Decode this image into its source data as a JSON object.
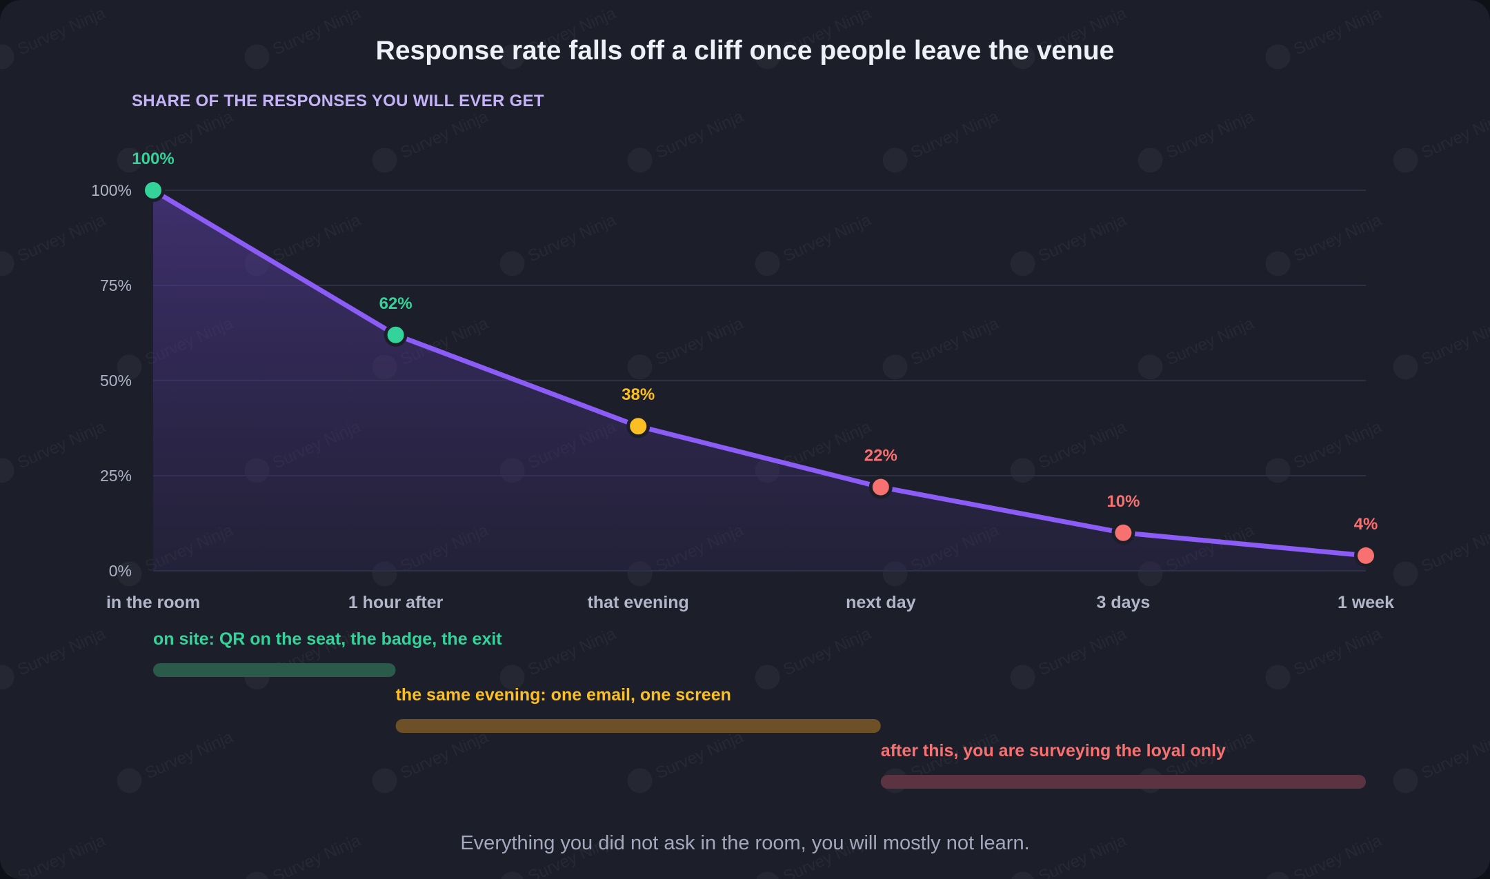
{
  "title": "Response rate falls off a cliff once people leave the venue",
  "subtitle": "SHARE OF THE RESPONSES YOU WILL EVER GET",
  "caption": "Everything you did not ask in the room, you will mostly not learn.",
  "watermark": "Survey Ninja",
  "colors": {
    "background": "#1c1e2a",
    "line": "#8b5cf6",
    "green": "#34d399",
    "amber": "#fbbf24",
    "red": "#f87171"
  },
  "chart_data": {
    "type": "area",
    "categories": [
      "in the room",
      "1 hour after",
      "that evening",
      "next day",
      "3 days",
      "1 week"
    ],
    "values": [
      100,
      62,
      38,
      22,
      10,
      4
    ],
    "value_labels": [
      "100%",
      "62%",
      "38%",
      "22%",
      "10%",
      "4%"
    ],
    "point_colors": [
      "#34d399",
      "#34d399",
      "#fbbf24",
      "#f87171",
      "#f87171",
      "#f87171"
    ],
    "ylim": [
      0,
      100
    ],
    "yticks": [
      {
        "value": 0,
        "label": "0%"
      },
      {
        "value": 25,
        "label": "25%"
      },
      {
        "value": 50,
        "label": "50%"
      },
      {
        "value": 75,
        "label": "75%"
      },
      {
        "value": 100,
        "label": "100%"
      }
    ],
    "grid": true,
    "segments": [
      {
        "label": "on site: QR on the seat, the badge, the exit",
        "from": 0,
        "to": 1,
        "color": "#34d399"
      },
      {
        "label": "the same evening: one email, one screen",
        "from": 1,
        "to": 3,
        "color": "#fbbf24"
      },
      {
        "label": "after this, you are surveying the loyal only",
        "from": 3,
        "to": 5,
        "color": "#f87171"
      }
    ]
  }
}
